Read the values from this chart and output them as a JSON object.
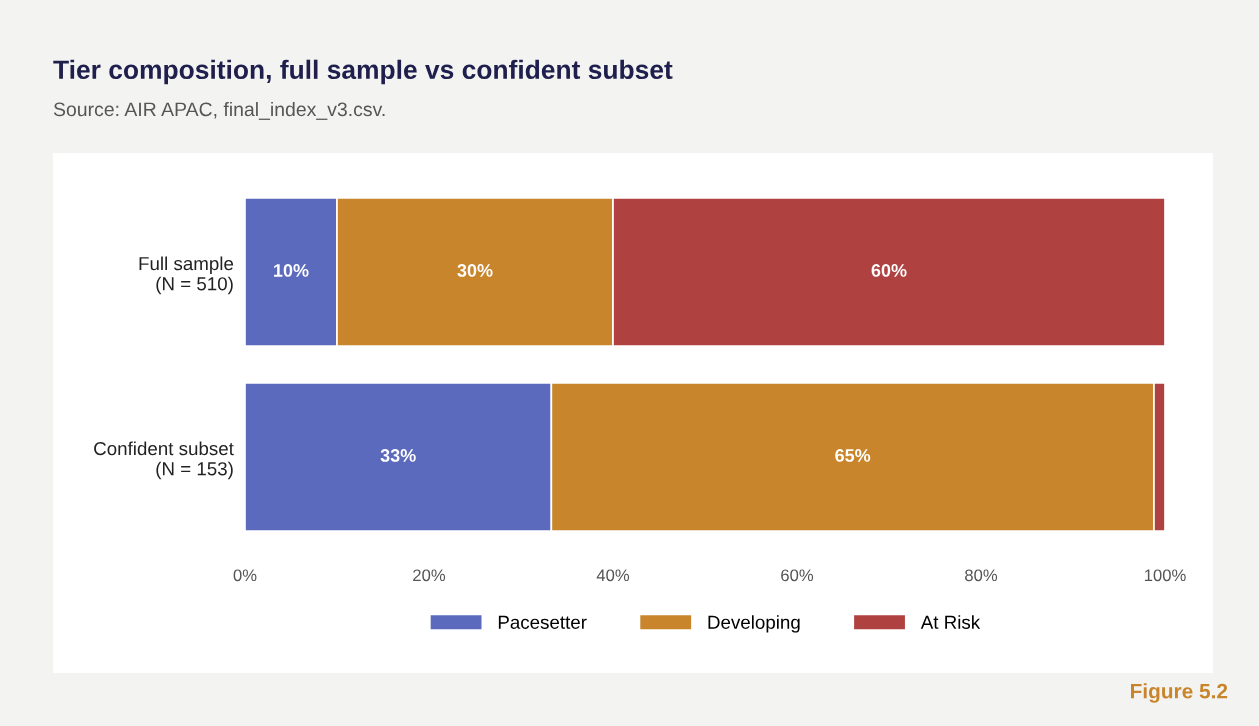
{
  "chart_data": {
    "type": "bar",
    "orientation": "horizontal",
    "stacked": true,
    "title": "Tier composition, full sample vs confident subset",
    "annotations": [
      "Source: AIR APAC, final_index_v3.csv.",
      "Figure 5.2"
    ],
    "categories": [
      "Full sample\n(N = 510)",
      "Confident subset\n(N = 153)"
    ],
    "series": [
      {
        "name": "Pacesetter",
        "color": "#5b6abd",
        "values": [
          10,
          33.3
        ],
        "value_labels": [
          "10%",
          "33%"
        ]
      },
      {
        "name": "Developing",
        "color": "#c8852b",
        "values": [
          30,
          65.5
        ],
        "value_labels": [
          "30%",
          "65%"
        ]
      },
      {
        "name": "At Risk",
        "color": "#b04141",
        "values": [
          60,
          1.2
        ],
        "value_labels": [
          "60%",
          null
        ]
      }
    ],
    "xlim": [
      0,
      100
    ],
    "xticks": [
      {
        "value": 0,
        "label": "0%"
      },
      {
        "value": 20,
        "label": "20%"
      },
      {
        "value": 40,
        "label": "40%"
      },
      {
        "value": 60,
        "label": "60%"
      },
      {
        "value": 80,
        "label": "80%"
      },
      {
        "value": 100,
        "label": "100%"
      }
    ],
    "grid": false,
    "legend": "bottom"
  }
}
